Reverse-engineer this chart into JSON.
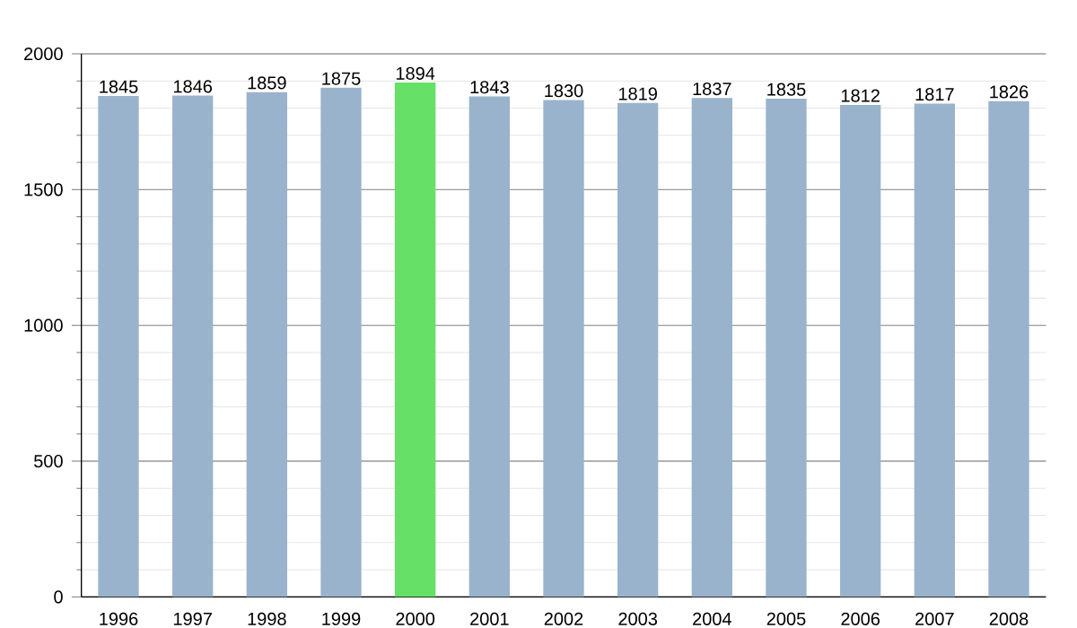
{
  "chart_data": {
    "type": "bar",
    "categories": [
      "1996",
      "1997",
      "1998",
      "1999",
      "2000",
      "2001",
      "2002",
      "2003",
      "2004",
      "2005",
      "2006",
      "2007",
      "2008"
    ],
    "values": [
      1845,
      1846,
      1859,
      1875,
      1894,
      1843,
      1830,
      1819,
      1837,
      1835,
      1812,
      1817,
      1826
    ],
    "colors": [
      "#9ab3cc",
      "#9ab3cc",
      "#9ab3cc",
      "#9ab3cc",
      "#66e066",
      "#9ab3cc",
      "#9ab3cc",
      "#9ab3cc",
      "#9ab3cc",
      "#9ab3cc",
      "#9ab3cc",
      "#9ab3cc",
      "#9ab3cc"
    ],
    "ylim": [
      0,
      2000
    ],
    "yticks": [
      0,
      {
        "value": 100,
        "label": null
      },
      {
        "value": 200,
        "label": null
      },
      {
        "value": 300,
        "label": null
      },
      {
        "value": 400,
        "label": null
      },
      500,
      {
        "value": 600,
        "label": null
      },
      {
        "value": 700,
        "label": null
      },
      {
        "value": 800,
        "label": null
      },
      {
        "value": 900,
        "label": null
      },
      1000,
      {
        "value": 1100,
        "label": null
      },
      {
        "value": 1200,
        "label": null
      },
      {
        "value": 1300,
        "label": null
      },
      {
        "value": 1400,
        "label": null
      },
      1500,
      {
        "value": 1600,
        "label": null
      },
      {
        "value": 1700,
        "label": null
      },
      {
        "value": 1800,
        "label": null
      },
      {
        "value": 1900,
        "label": null
      },
      2000
    ],
    "grid": "y",
    "data_labels": true
  }
}
